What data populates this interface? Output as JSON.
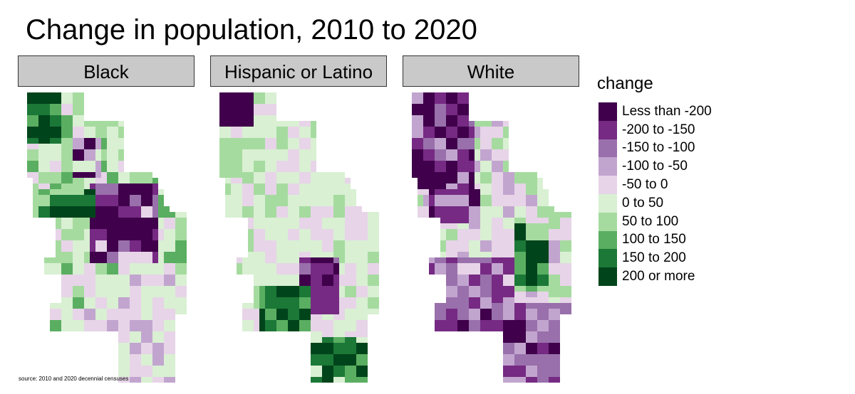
{
  "title": "Change in population, 2010 to 2020",
  "panels": [
    {
      "label": "Black",
      "key": "black"
    },
    {
      "label": "Hispanic or Latino",
      "key": "hispanic"
    },
    {
      "label": "White",
      "key": "white"
    }
  ],
  "legend": {
    "title": "change",
    "items": [
      {
        "label": "Less than -200",
        "color": "#40004b"
      },
      {
        "label": "-200 to -150",
        "color": "#762a83"
      },
      {
        "label": "-150 to -100",
        "color": "#9970ab"
      },
      {
        "label": "-100 to -50",
        "color": "#c2a5cf"
      },
      {
        "label": "-50 to 0",
        "color": "#e7d4e8"
      },
      {
        "label": "0 to 50",
        "color": "#d9f0d3"
      },
      {
        "label": "50 to 100",
        "color": "#a6dba0"
      },
      {
        "label": "100 to 150",
        "color": "#5aae61"
      },
      {
        "label": "150 to 200",
        "color": "#1b7837"
      },
      {
        "label": "200 or more",
        "color": "#00441b"
      }
    ]
  },
  "source": "source: 2010 and 2020 decennial censuses"
}
